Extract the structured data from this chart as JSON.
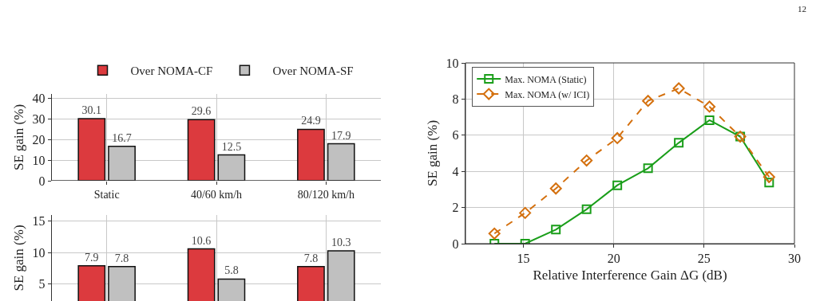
{
  "chart_data": [
    {
      "type": "bar",
      "ylabel": "SE gain (%)",
      "categories": [
        "Static",
        "40/60 km/h",
        "80/120 km/h"
      ],
      "series": [
        {
          "name": "Over NOMA-CF",
          "color": "#dc3a3e",
          "values": [
            30.1,
            29.6,
            24.9
          ]
        },
        {
          "name": "Over NOMA-SF",
          "color": "#c0c0c0",
          "values": [
            16.7,
            12.5,
            17.9
          ]
        }
      ],
      "ylim": [
        0,
        42
      ],
      "yticks": [
        0,
        10,
        20,
        30,
        40
      ],
      "grid": true,
      "legend": "top",
      "data_labels": true
    },
    {
      "type": "bar",
      "ylabel": "SE gain (%)",
      "categories": [
        null,
        null,
        null
      ],
      "series": [
        {
          "color": "#dc3a3e",
          "values": [
            7.9,
            10.6,
            7.8
          ]
        },
        {
          "color": "#c0c0c0",
          "values": [
            7.8,
            5.8,
            10.3
          ]
        }
      ],
      "ylim": [
        2.3,
        16
      ],
      "yticks": [
        5,
        10,
        15
      ],
      "grid": true,
      "data_labels": true
    },
    {
      "type": "line",
      "xlabel": "Relative Interference Gain ΔG (dB)",
      "ylabel": "SE gain (%)",
      "x": [
        13.4,
        15.1,
        16.8,
        18.5,
        20.2,
        21.9,
        23.6,
        25.3,
        27.0,
        28.6
      ],
      "series": [
        {
          "name": "Max. NOMA (Static)",
          "color": "#1a9e1a",
          "marker": "square",
          "line_style": "solid",
          "values": [
            0,
            0,
            0.78,
            1.9,
            3.23,
            4.17,
            5.58,
            6.83,
            5.92,
            3.38
          ]
        },
        {
          "name": "Max. NOMA (w/ ICI)",
          "color": "#d4700e",
          "marker": "diamond",
          "line_style": "dashed",
          "values": [
            0.56,
            1.7,
            3.05,
            4.6,
            5.84,
            7.9,
            8.59,
            7.58,
            5.92,
            3.69
          ]
        }
      ],
      "xlim": [
        11.8,
        30
      ],
      "xticks": [
        15,
        20,
        25,
        30
      ],
      "ylim": [
        0,
        10
      ],
      "yticks": [
        0,
        2,
        4,
        6,
        8,
        10
      ],
      "grid": true,
      "legend": "top left",
      "annotations": [
        "12"
      ]
    }
  ]
}
